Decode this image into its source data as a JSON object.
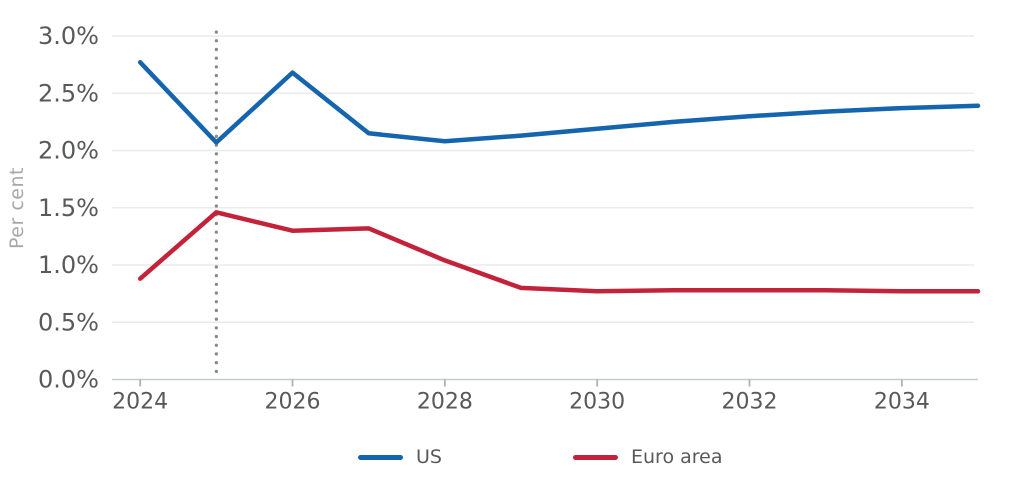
{
  "chart_data": {
    "type": "line",
    "title": "",
    "xlabel": "",
    "ylabel": "Per cent",
    "x": [
      2024,
      2025,
      2026,
      2027,
      2028,
      2029,
      2030,
      2031,
      2032,
      2033,
      2034,
      2035
    ],
    "series": [
      {
        "name": "US",
        "color": "#1565ae",
        "values": [
          2.77,
          2.07,
          2.68,
          2.15,
          2.08,
          2.13,
          2.19,
          2.25,
          2.3,
          2.34,
          2.37,
          2.39
        ]
      },
      {
        "name": "Euro area",
        "color": "#c2233b",
        "values": [
          0.88,
          1.46,
          1.3,
          1.32,
          1.04,
          0.8,
          0.77,
          0.78,
          0.78,
          0.78,
          0.77,
          0.77
        ]
      }
    ],
    "xlim": [
      2023.63,
      2035.0
    ],
    "ylim": [
      0,
      3
    ],
    "x_ticks": [
      2024,
      2026,
      2028,
      2030,
      2032,
      2034
    ],
    "x_tick_labels": [
      "2024",
      "2026",
      "2028",
      "2030",
      "2032",
      "2034"
    ],
    "y_ticks": [
      0,
      0.5,
      1,
      1.5,
      2,
      2.5,
      3
    ],
    "y_tick_labels": [
      "0.0%",
      "0.5%",
      "1.0%",
      "1.5%",
      "2.0%",
      "2.5%",
      "3.0%"
    ],
    "grid": true,
    "legend_position": "bottom",
    "annotations": [
      {
        "type": "vline",
        "x": 2025,
        "style": "dotted",
        "color": "#87888a"
      }
    ],
    "colors": {
      "gridline": "#ebebeb",
      "axis_line": "#c8c9ca",
      "tick_mark": "#aeb0b2",
      "tick_label": "#58595b",
      "axis_title": "#a6a8ab",
      "background": "#ffffff"
    }
  }
}
